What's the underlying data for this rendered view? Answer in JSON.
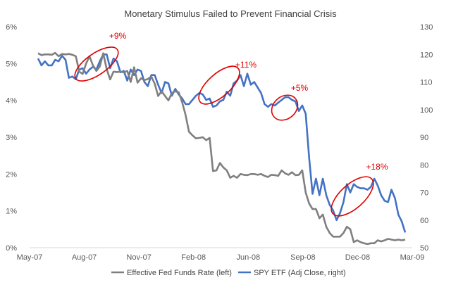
{
  "chart_data": {
    "type": "line",
    "title": "Monetary Stimulus Failed to Prevent Financial Crisis",
    "xlabel": "",
    "ylabel_left": "",
    "ylabel_right": "",
    "x_ticks": [
      "May-07",
      "Aug-07",
      "Nov-07",
      "Feb-08",
      "Jun-08",
      "Sep-08",
      "Dec-08",
      "Mar-09"
    ],
    "y_left_ticks": [
      "0%",
      "1%",
      "2%",
      "3%",
      "4%",
      "5%",
      "6%"
    ],
    "y_right_ticks": [
      "50",
      "60",
      "70",
      "80",
      "90",
      "100",
      "110",
      "120",
      "130"
    ],
    "ylim_left": [
      0,
      6
    ],
    "ylim_right": [
      50,
      130
    ],
    "grid": false,
    "legend_position": "bottom",
    "colors": {
      "fed": "#7f7f7f",
      "spy": "#4472c4",
      "annotation": "#e00000"
    },
    "series": [
      {
        "name": "Effective Fed Funds Rate (left)",
        "axis": "left",
        "values": [
          5.28,
          5.23,
          5.25,
          5.25,
          5.24,
          5.29,
          5.2,
          5.26,
          5.25,
          5.26,
          5.24,
          5.2,
          4.78,
          4.72,
          5.0,
          5.2,
          4.95,
          4.8,
          4.92,
          5.28,
          4.85,
          4.57,
          4.78,
          4.77,
          4.78,
          4.76,
          4.8,
          4.5,
          4.9,
          4.48,
          4.6,
          4.55,
          4.58,
          4.65,
          4.45,
          4.12,
          4.25,
          4.12,
          4.0,
          4.2,
          4.25,
          4.22,
          3.95,
          3.6,
          3.15,
          3.05,
          2.97,
          2.98,
          3.0,
          2.92,
          2.98,
          2.08,
          2.1,
          2.3,
          2.18,
          2.1,
          1.9,
          1.95,
          1.9,
          2.0,
          1.98,
          1.97,
          2.0,
          2.0,
          1.98,
          2.0,
          1.95,
          1.92,
          1.98,
          1.97,
          1.95,
          2.1,
          2.02,
          1.98,
          2.05,
          1.97,
          1.98,
          2.1,
          1.5,
          1.2,
          1.05,
          1.05,
          0.8,
          0.9,
          0.57,
          0.4,
          0.3,
          0.3,
          0.3,
          0.4,
          0.57,
          0.5,
          0.15,
          0.2,
          0.15,
          0.12,
          0.1,
          0.12,
          0.12,
          0.2,
          0.17,
          0.2,
          0.24,
          0.22,
          0.2,
          0.22,
          0.2,
          0.22
        ]
      },
      {
        "name": "SPY ETF (Adj Close, right)",
        "axis": "right",
        "values": [
          118.5,
          116.0,
          117.5,
          116.0,
          116.0,
          118.0,
          117.5,
          119.5,
          118.0,
          111.5,
          112.0,
          111.0,
          114.5,
          115.0,
          113.0,
          114.5,
          115.5,
          114.5,
          117.5,
          120.0,
          120.0,
          115.0,
          118.5,
          117.5,
          113.5,
          114.0,
          110.5,
          114.5,
          112.5,
          114.5,
          114.0,
          110.0,
          108.5,
          112.5,
          112.5,
          109.0,
          106.0,
          110.0,
          109.5,
          105.0,
          107.5,
          105.5,
          104.0,
          102.0,
          102.0,
          103.5,
          105.0,
          106.0,
          105.5,
          103.5,
          104.0,
          101.0,
          101.5,
          103.0,
          103.5,
          106.5,
          105.0,
          109.5,
          110.5,
          112.5,
          108.5,
          113.0,
          109.0,
          110.0,
          108.0,
          106.0,
          102.0,
          101.0,
          102.0,
          101.5,
          102.5,
          103.5,
          104.5,
          104.5,
          103.5,
          103.0,
          99.5,
          101.5,
          98.5,
          82.5,
          69.5,
          75.0,
          69.0,
          75.0,
          69.0,
          65.5,
          63.5,
          60.0,
          62.5,
          66.5,
          73.0,
          70.0,
          73.0,
          72.0,
          71.5,
          71.5,
          71.0,
          72.0,
          75.0,
          72.5,
          69.0,
          67.0,
          66.5,
          71.0,
          68.0,
          62.0,
          59.5,
          55.5
        ]
      }
    ],
    "annotations": [
      "+9%",
      "+11%",
      "+5%",
      "+18%"
    ]
  }
}
